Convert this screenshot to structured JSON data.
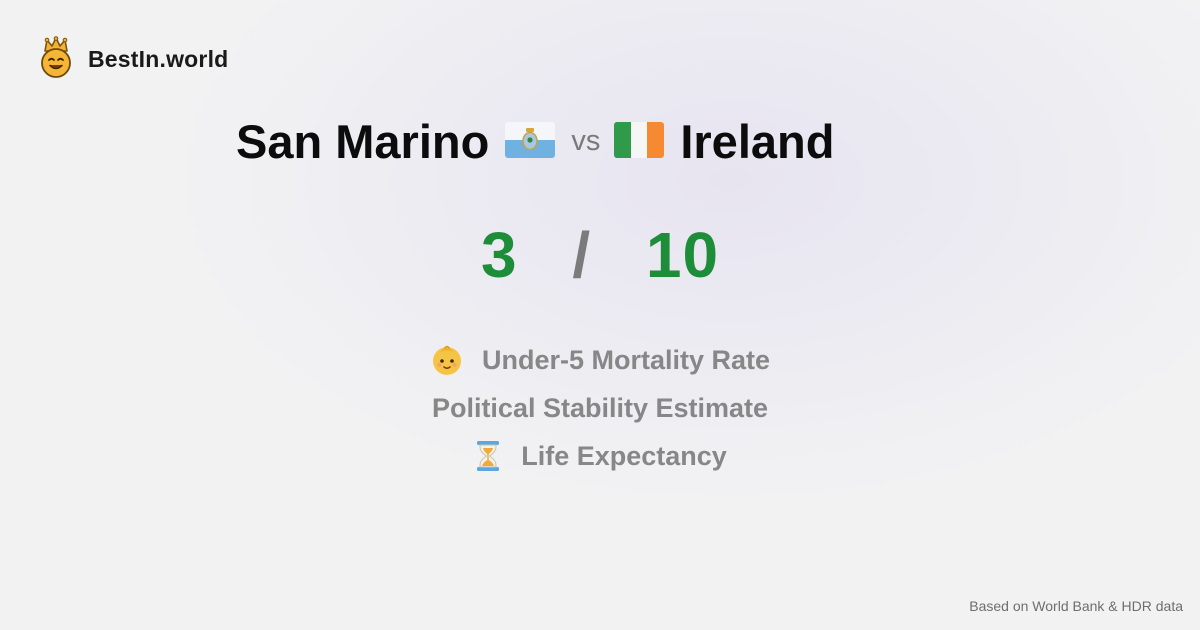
{
  "brand": {
    "name": "BestIn.world",
    "icon": "crown-smiley-icon"
  },
  "comparison": {
    "left_country": "San Marino",
    "left_flag": "san-marino-flag-icon",
    "vs_label": "vs",
    "right_country": "Ireland",
    "right_flag": "ireland-flag-icon"
  },
  "score": {
    "left": "3",
    "separator": "/",
    "right": "10",
    "color": "#1e8d3a"
  },
  "metrics": [
    {
      "label": "Under-5 Mortality Rate",
      "icon": "baby-face-icon"
    },
    {
      "label": "Political Stability Estimate",
      "icon": ""
    },
    {
      "label": "Life Expectancy",
      "icon": "hourglass-icon"
    }
  ],
  "footer": {
    "text": "Based on World Bank & HDR data"
  }
}
